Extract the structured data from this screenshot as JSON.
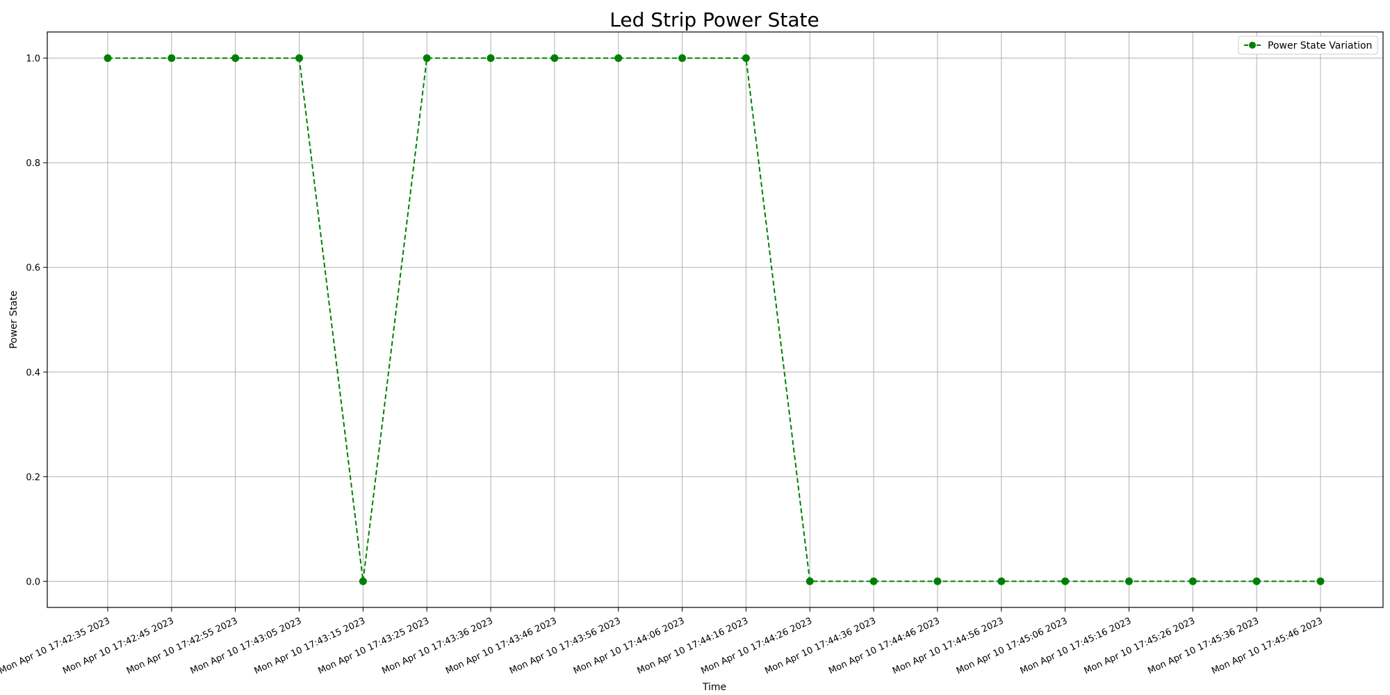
{
  "chart_data": {
    "type": "line",
    "title": "Led Strip Power State",
    "xlabel": "Time",
    "ylabel": "Power State",
    "grid": true,
    "legend_position": "top-right",
    "ylim": [
      -0.05,
      1.05
    ],
    "yticks": [
      0.0,
      0.2,
      0.4,
      0.6,
      0.8,
      1.0
    ],
    "ytick_labels": [
      "0.0",
      "0.2",
      "0.4",
      "0.6",
      "0.8",
      "1.0"
    ],
    "x_labels": [
      "Mon Apr 10 17:42:35 2023",
      "Mon Apr 10 17:42:45 2023",
      "Mon Apr 10 17:42:55 2023",
      "Mon Apr 10 17:43:05 2023",
      "Mon Apr 10 17:43:15 2023",
      "Mon Apr 10 17:43:25 2023",
      "Mon Apr 10 17:43:36 2023",
      "Mon Apr 10 17:43:46 2023",
      "Mon Apr 10 17:43:56 2023",
      "Mon Apr 10 17:44:06 2023",
      "Mon Apr 10 17:44:16 2023",
      "Mon Apr 10 17:44:26 2023",
      "Mon Apr 10 17:44:36 2023",
      "Mon Apr 10 17:44:46 2023",
      "Mon Apr 10 17:44:56 2023",
      "Mon Apr 10 17:45:06 2023",
      "Mon Apr 10 17:45:16 2023",
      "Mon Apr 10 17:45:26 2023",
      "Mon Apr 10 17:45:36 2023",
      "Mon Apr 10 17:45:46 2023"
    ],
    "series": [
      {
        "name": "Power State Variation",
        "color": "#008000",
        "line_style": "dashed",
        "marker": "circle",
        "values": [
          1,
          1,
          1,
          1,
          0,
          1,
          1,
          1,
          1,
          1,
          1,
          0,
          0,
          0,
          0,
          0,
          0,
          0,
          0,
          0
        ]
      }
    ]
  }
}
